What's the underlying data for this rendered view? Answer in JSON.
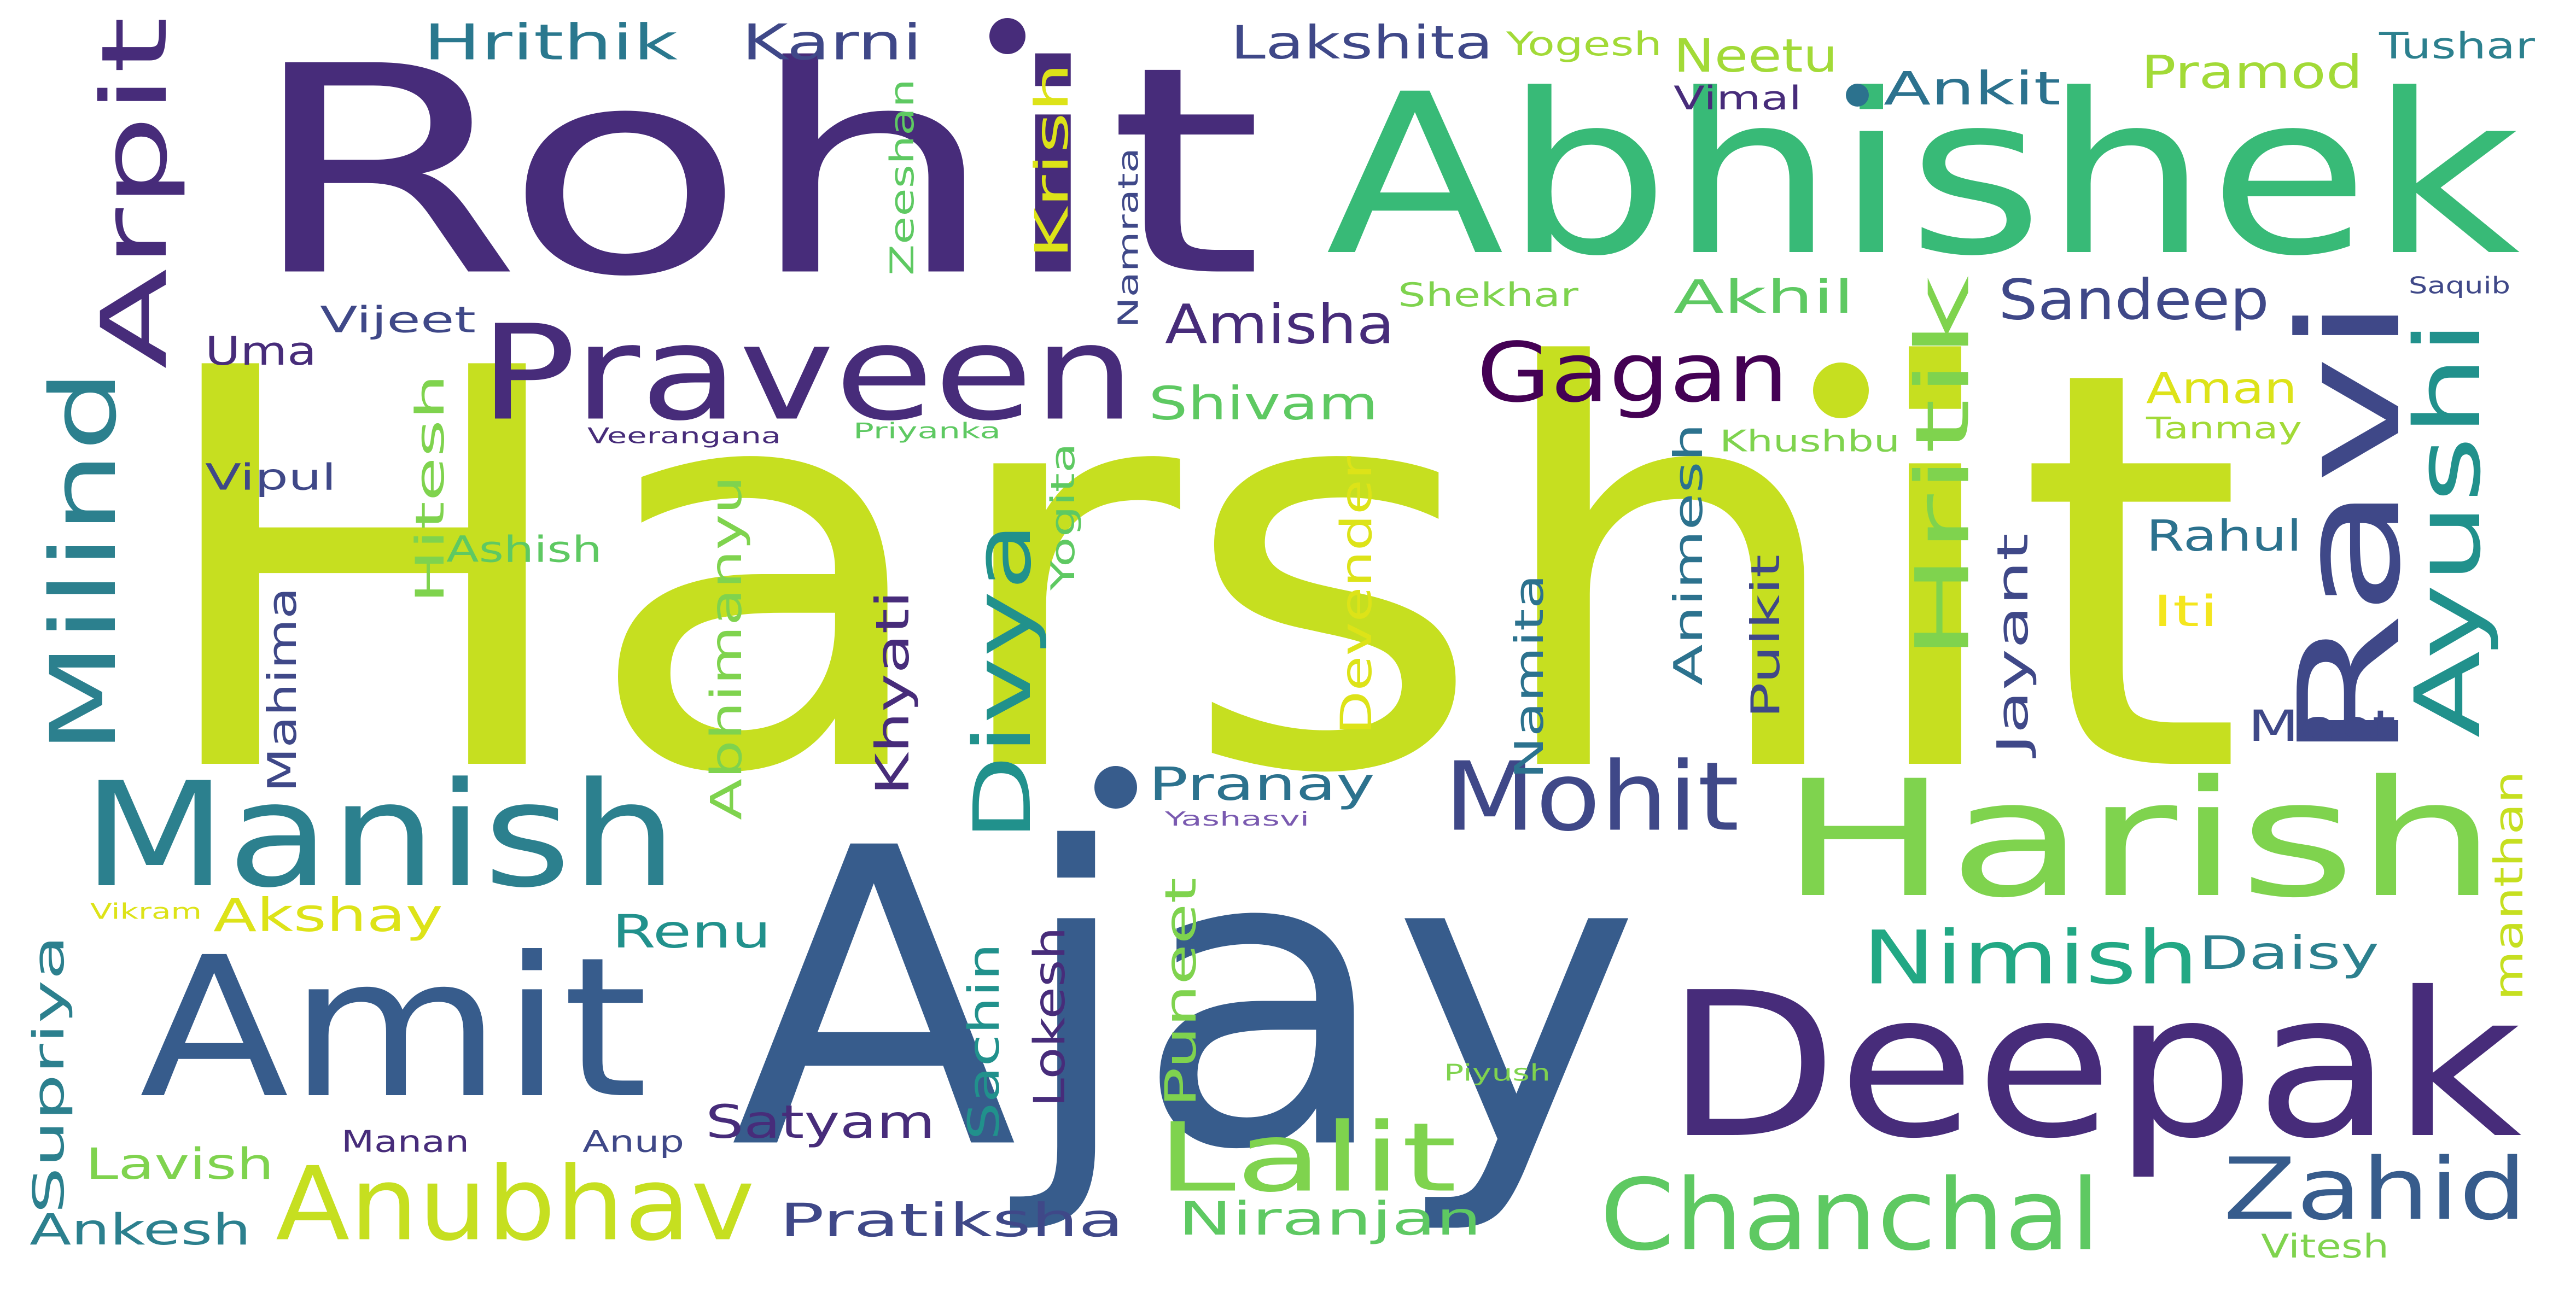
{
  "words": [
    {
      "text": "Harshit",
      "color": "#c6df20",
      "rotate": false
    },
    {
      "text": "Ajay",
      "color": "#375c8c",
      "rotate": false
    },
    {
      "text": "Rohit",
      "color": "#472c7a",
      "rotate": false
    },
    {
      "text": "Abhishek",
      "color": "#38ba77",
      "rotate": false
    },
    {
      "text": "Deepak",
      "color": "#472c7a",
      "rotate": false
    },
    {
      "text": "Harish",
      "color": "#7fd34e",
      "rotate": false
    },
    {
      "text": "Amit",
      "color": "#375c8c",
      "rotate": false
    },
    {
      "text": "Manish",
      "color": "#2c808e",
      "rotate": false
    },
    {
      "text": "Praveen",
      "color": "#472c7a",
      "rotate": false
    },
    {
      "text": "Ravi",
      "color": "#3f4888",
      "rotate": true
    },
    {
      "text": "Anubhav",
      "color": "#c6df20",
      "rotate": false
    },
    {
      "text": "Chanchal",
      "color": "#5ec962",
      "rotate": false
    },
    {
      "text": "Lalit",
      "color": "#7fd34e",
      "rotate": false
    },
    {
      "text": "Mohit",
      "color": "#3f4888",
      "rotate": false
    },
    {
      "text": "Zahid",
      "color": "#375c8c",
      "rotate": false
    },
    {
      "text": "Milind",
      "color": "#2c808e",
      "rotate": true
    },
    {
      "text": "Arpit",
      "color": "#472c7a",
      "rotate": true
    },
    {
      "text": "Ayushi",
      "color": "#21918c",
      "rotate": true
    },
    {
      "text": "Divya",
      "color": "#21918c",
      "rotate": true
    },
    {
      "text": "Gagan",
      "color": "#440154",
      "rotate": false
    },
    {
      "text": "Hritik",
      "color": "#7fd34e",
      "rotate": true
    },
    {
      "text": "Nimish",
      "color": "#22a884",
      "rotate": false
    },
    {
      "text": "Sandeep",
      "color": "#3f4888",
      "rotate": false
    },
    {
      "text": "Amisha",
      "color": "#472c7a",
      "rotate": false
    },
    {
      "text": "Hrithik",
      "color": "#2a788e",
      "rotate": false
    },
    {
      "text": "Karni",
      "color": "#3f4888",
      "rotate": false
    },
    {
      "text": "Lakshita",
      "color": "#3f4888",
      "rotate": false
    },
    {
      "text": "Ankit",
      "color": "#2c728e",
      "rotate": false
    },
    {
      "text": "Pramod",
      "color": "#a2da37",
      "rotate": false
    },
    {
      "text": "Neetu",
      "color": "#a2da37",
      "rotate": false
    },
    {
      "text": "Akhil",
      "color": "#5ec962",
      "rotate": false
    },
    {
      "text": "Shivam",
      "color": "#5ec962",
      "rotate": false
    },
    {
      "text": "Aman",
      "color": "#dde318",
      "rotate": false
    },
    {
      "text": "Rahul",
      "color": "#2c728e",
      "rotate": false
    },
    {
      "text": "Iti",
      "color": "#f4e61e",
      "rotate": false
    },
    {
      "text": "Meet",
      "color": "#3f4888",
      "rotate": false
    },
    {
      "text": "Pranay",
      "color": "#2c728e",
      "rotate": false
    },
    {
      "text": "Akshay",
      "color": "#dde318",
      "rotate": false
    },
    {
      "text": "Renu",
      "color": "#21918c",
      "rotate": false
    },
    {
      "text": "Daisy",
      "color": "#2c808e",
      "rotate": false
    },
    {
      "text": "Satyam",
      "color": "#472c7a",
      "rotate": false
    },
    {
      "text": "Pratiksha",
      "color": "#3f4888",
      "rotate": false
    },
    {
      "text": "Niranjan",
      "color": "#5ec962",
      "rotate": false
    },
    {
      "text": "Ankesh",
      "color": "#2c808e",
      "rotate": false
    },
    {
      "text": "Lavish",
      "color": "#7fd34e",
      "rotate": false
    },
    {
      "text": "Uma",
      "color": "#472c7a",
      "rotate": false
    },
    {
      "text": "Vijeet",
      "color": "#3f4888",
      "rotate": false
    },
    {
      "text": "Vipul",
      "color": "#3f4888",
      "rotate": false
    },
    {
      "text": "Ashish",
      "color": "#5ec962",
      "rotate": false
    },
    {
      "text": "Hitesh",
      "color": "#7fd34e",
      "rotate": true
    },
    {
      "text": "Mahima",
      "color": "#3f4888",
      "rotate": true
    },
    {
      "text": "Supriya",
      "color": "#2c808e",
      "rotate": true
    },
    {
      "text": "Krish",
      "color": "#dde318",
      "rotate": true
    },
    {
      "text": "Zeeshan",
      "color": "#5ec962",
      "rotate": true
    },
    {
      "text": "Namrata",
      "color": "#3f4888",
      "rotate": true
    },
    {
      "text": "Yogita",
      "color": "#5ec962",
      "rotate": true
    },
    {
      "text": "Abhimanyu",
      "color": "#7fd34e",
      "rotate": true
    },
    {
      "text": "Khyati",
      "color": "#472c7a",
      "rotate": true
    },
    {
      "text": "Devender",
      "color": "#dde318",
      "rotate": true
    },
    {
      "text": "Namita",
      "color": "#2c728e",
      "rotate": true
    },
    {
      "text": "Animesh",
      "color": "#2c728e",
      "rotate": true
    },
    {
      "text": "Pulkit",
      "color": "#3f4888",
      "rotate": true
    },
    {
      "text": "Jayant",
      "color": "#3f4888",
      "rotate": true
    },
    {
      "text": "Lokesh",
      "color": "#472c7a",
      "rotate": true
    },
    {
      "text": "Sachin",
      "color": "#21918c",
      "rotate": true
    },
    {
      "text": "Puneet",
      "color": "#7fd34e",
      "rotate": true
    },
    {
      "text": "manthan",
      "color": "#c6df20",
      "rotate": true
    },
    {
      "text": "Shekhar",
      "color": "#7fd34e",
      "rotate": false
    },
    {
      "text": "Khushbu",
      "color": "#7fd34e",
      "rotate": false
    },
    {
      "text": "Tanmay",
      "color": "#a2da37",
      "rotate": false
    },
    {
      "text": "Yogesh",
      "color": "#a2da37",
      "rotate": false
    },
    {
      "text": "Tushar",
      "color": "#2c808e",
      "rotate": false
    },
    {
      "text": "Vimal",
      "color": "#472c7a",
      "rotate": false
    },
    {
      "text": "Saquib",
      "color": "#3f4888",
      "rotate": false
    },
    {
      "text": "Veerangana",
      "color": "#472c7a",
      "rotate": false
    },
    {
      "text": "Priyanka",
      "color": "#5ec962",
      "rotate": false
    },
    {
      "text": "Yashasvi",
      "color": "#7a5ab0",
      "rotate": false
    },
    {
      "text": "Vikram",
      "color": "#dde318",
      "rotate": false
    },
    {
      "text": "Manan",
      "color": "#472c7a",
      "rotate": false
    },
    {
      "text": "Anup",
      "color": "#3f4888",
      "rotate": false
    },
    {
      "text": "Piyush",
      "color": "#7fd34e",
      "rotate": false
    },
    {
      "text": "Vitesh",
      "color": "#7fd34e",
      "rotate": false
    }
  ],
  "dots": [
    {
      "color": "#472c7a"
    },
    {
      "color": "#375c8c"
    },
    {
      "color": "#c6df20"
    },
    {
      "color": "#2c728e"
    }
  ]
}
